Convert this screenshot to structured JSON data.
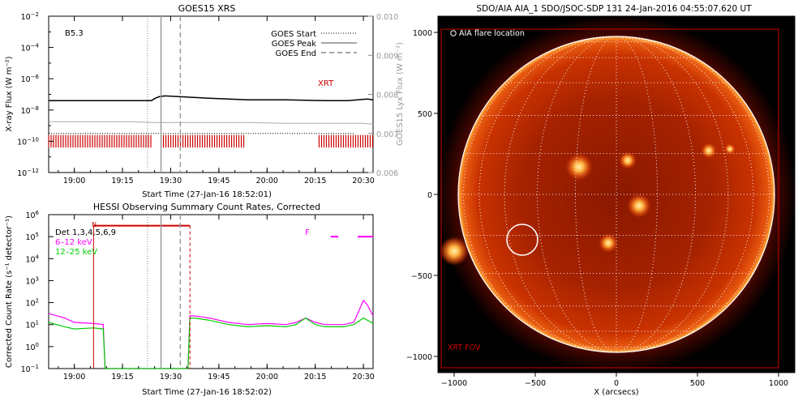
{
  "chart_data": [
    {
      "type": "line",
      "title": "GOES15 XRS",
      "xlabel": "Start Time (27-Jan-16 18:52:01)",
      "ylabel": "X-ray Flux (W m⁻²)",
      "y2label": "GOES15 Lyx Flux (W m⁻²)",
      "xlim": [
        18.867,
        20.55
      ],
      "x_ticks": [
        19.0,
        19.25,
        19.5,
        19.75,
        20.0,
        20.25,
        20.5
      ],
      "x_tick_labels": [
        "19:00",
        "19:15",
        "19:30",
        "19:45",
        "20:00",
        "20:15",
        "20:30"
      ],
      "y_log": true,
      "ylim_exp": [
        -12,
        -2
      ],
      "y_tick_exps": [
        -12,
        -10,
        -8,
        -6,
        -4,
        -2
      ],
      "y_tick_labels": [
        "10",
        "10",
        "10",
        "10",
        "10",
        "10"
      ],
      "y_tick_sups": [
        "−12",
        "−10",
        "−8",
        "−6",
        "−4",
        "−2"
      ],
      "y2lim": [
        0.006,
        0.01
      ],
      "y2_ticks": [
        0.006,
        0.007,
        0.008,
        0.009,
        0.01
      ],
      "y2_tick_labels": [
        "0.006",
        "0.007",
        "0.008",
        "0.009",
        "0.010"
      ],
      "class_label": "B5.3",
      "xrt_label": "XRT",
      "goes_start": 19.38,
      "goes_peak": 19.45,
      "goes_end": 19.55,
      "legend": [
        {
          "label": "GOES Start",
          "style": "dotted"
        },
        {
          "label": "GOES Peak",
          "style": "solid"
        },
        {
          "label": "GOES End",
          "style": "dashed"
        }
      ],
      "series": [
        {
          "color": "#000000",
          "x": [
            18.867,
            19.0,
            19.2,
            19.4,
            19.42,
            19.44,
            19.47,
            19.55,
            19.7,
            19.9,
            20.1,
            20.3,
            20.42,
            20.47,
            20.52,
            20.55
          ],
          "y_exp": [
            -7.4,
            -7.4,
            -7.4,
            -7.4,
            -7.25,
            -7.15,
            -7.1,
            -7.15,
            -7.25,
            -7.35,
            -7.35,
            -7.4,
            -7.4,
            -7.35,
            -7.3,
            -7.35
          ]
        },
        {
          "color": "#aaaaaa",
          "x": [
            18.867,
            19.1,
            19.3,
            19.4,
            19.5,
            19.7,
            19.9,
            20.1,
            20.3,
            20.5,
            20.55
          ],
          "y_exp": [
            -8.75,
            -8.75,
            -8.75,
            -8.8,
            -8.8,
            -8.8,
            -8.8,
            -8.85,
            -8.85,
            -8.85,
            -8.9
          ]
        }
      ],
      "dotted_level_exp": -9.5,
      "xrt_bar": {
        "color": "#cc0000",
        "y_exp": [
          -10.4,
          -9.6
        ],
        "intervals": [
          [
            18.867,
            19.4
          ],
          [
            19.45,
            19.88
          ],
          [
            20.27,
            20.55
          ]
        ]
      }
    },
    {
      "type": "line",
      "title": "HESSI Observing Summary Count Rates, Corrected",
      "xlabel": "Start Time (27-Jan-16 18:52:02)",
      "ylabel": "Corrected Count Rate (s⁻¹ detector⁻¹)",
      "xlim": [
        18.867,
        20.55
      ],
      "x_ticks": [
        19.0,
        19.25,
        19.5,
        19.75,
        20.0,
        20.25,
        20.5
      ],
      "x_tick_labels": [
        "19:00",
        "19:15",
        "19:30",
        "19:45",
        "20:00",
        "20:15",
        "20:30"
      ],
      "y_log": true,
      "ylim_exp": [
        -1,
        6
      ],
      "y_tick_exps": [
        -1,
        0,
        1,
        2,
        3,
        4,
        5,
        6
      ],
      "y_tick_labels": [
        "10",
        "10",
        "10",
        "10",
        "10",
        "10",
        "10",
        "10"
      ],
      "y_tick_sups": [
        "−1",
        "0",
        "1",
        "2",
        "3",
        "4",
        "5",
        "6"
      ],
      "legend_texts": [
        {
          "text": "Det 1,3,4,5,6,9",
          "color": "#000000"
        },
        {
          "text": "6–12 keV",
          "color": "#ff00ff"
        },
        {
          "text": "12–25 keV",
          "color": "#00cc00"
        }
      ],
      "n_label": "N",
      "f_label": "F",
      "goes_start": 19.38,
      "goes_peak": 19.45,
      "goes_end": 19.55,
      "night_start": 19.1,
      "night_end": 19.6,
      "series": [
        {
          "color": "#ff00ff",
          "x": [
            18.867,
            18.95,
            19.0,
            19.1,
            19.15,
            19.16,
            19.59,
            19.6,
            19.62,
            19.7,
            19.8,
            19.9,
            20.0,
            20.1,
            20.15,
            20.2,
            20.25,
            20.3,
            20.4,
            20.45,
            20.5,
            20.52,
            20.55
          ],
          "y_exp": [
            1.5,
            1.3,
            1.1,
            1.05,
            1.0,
            -1.0,
            -1.0,
            1.4,
            1.4,
            1.3,
            1.1,
            1.0,
            1.05,
            1.0,
            1.1,
            1.3,
            1.1,
            1.0,
            1.0,
            1.1,
            2.1,
            1.9,
            1.4
          ]
        },
        {
          "color": "#00cc00",
          "x": [
            18.867,
            18.95,
            19.0,
            19.1,
            19.15,
            19.16,
            19.59,
            19.6,
            19.62,
            19.7,
            19.8,
            19.9,
            20.0,
            20.1,
            20.15,
            20.2,
            20.25,
            20.3,
            20.4,
            20.45,
            20.5,
            20.52,
            20.55
          ],
          "y_exp": [
            1.1,
            0.9,
            0.8,
            0.85,
            0.8,
            -1.0,
            -1.0,
            1.3,
            1.3,
            1.2,
            1.0,
            0.9,
            0.95,
            0.9,
            1.0,
            1.3,
            1.0,
            0.9,
            0.9,
            1.0,
            1.3,
            1.2,
            1.05
          ]
        }
      ],
      "night_bar": {
        "color": "#cc0000",
        "y_exp": 5.5,
        "x": [
          19.1,
          19.6
        ]
      },
      "flare_marks": [
        {
          "color": "#ff00ff",
          "x": [
            20.33,
            20.37
          ],
          "y_exp": 5.0
        },
        {
          "color": "#ff00ff",
          "x": [
            20.47,
            20.55
          ],
          "y_exp": 5.0
        }
      ]
    },
    {
      "type": "heatmap",
      "title": "SDO/AIA AIA_1 SDO/JSOC-SDP 131 24-Jan-2016 04:55:07.620 UT",
      "xlabel": "X (arcsecs)",
      "xlim": [
        -1100,
        1100
      ],
      "ylim": [
        -1100,
        1100
      ],
      "x_ticks": [
        -1000,
        -500,
        0,
        500,
        1000
      ],
      "x_tick_labels": [
        "−1000",
        "−500",
        "0",
        "500",
        "1000"
      ],
      "y_ticks": [
        -1000,
        -500,
        0,
        500,
        1000
      ],
      "y_tick_labels": [
        "−1000",
        "−500",
        "0",
        "500",
        "1000"
      ],
      "sun_radius": 975,
      "flare_location": {
        "x": -580,
        "y": -280,
        "r": 95
      },
      "flare_label": "AIA flare location",
      "xrt_fov": {
        "x": [
          -1080,
          1000
        ],
        "y": [
          -1070,
          1020
        ]
      },
      "xrt_fov_label": "XRT FOV",
      "colors": {
        "sun": "#c93200",
        "bright": "#ffd060",
        "fov": "#cc0000"
      },
      "bright_regions": [
        {
          "x": -230,
          "y": 170,
          "r": 85
        },
        {
          "x": 70,
          "y": 210,
          "r": 55
        },
        {
          "x": 140,
          "y": -70,
          "r": 75
        },
        {
          "x": 570,
          "y": 270,
          "r": 50
        },
        {
          "x": 700,
          "y": 280,
          "r": 35
        },
        {
          "x": -50,
          "y": -300,
          "r": 60
        },
        {
          "x": -1000,
          "y": -350,
          "r": 90
        }
      ]
    }
  ]
}
